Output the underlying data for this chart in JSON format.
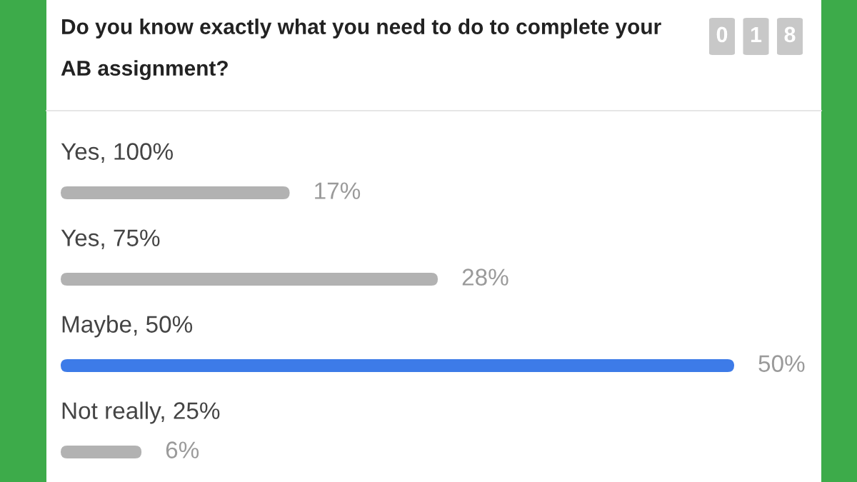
{
  "chart_data": {
    "type": "bar",
    "orientation": "horizontal",
    "title": "Do you know exactly what you need to do to complete your AB assignment?",
    "categories": [
      "Yes, 100%",
      "Yes, 75%",
      "Maybe, 50%",
      "Not really, 25%"
    ],
    "values": [
      17,
      28,
      50,
      6
    ],
    "colors": [
      "#b2b2b2",
      "#b2b2b2",
      "#3d7be8",
      "#b2b2b2"
    ],
    "value_labels": [
      "17%",
      "28%",
      "50%",
      "6%"
    ],
    "annotations": [
      "018"
    ]
  }
}
